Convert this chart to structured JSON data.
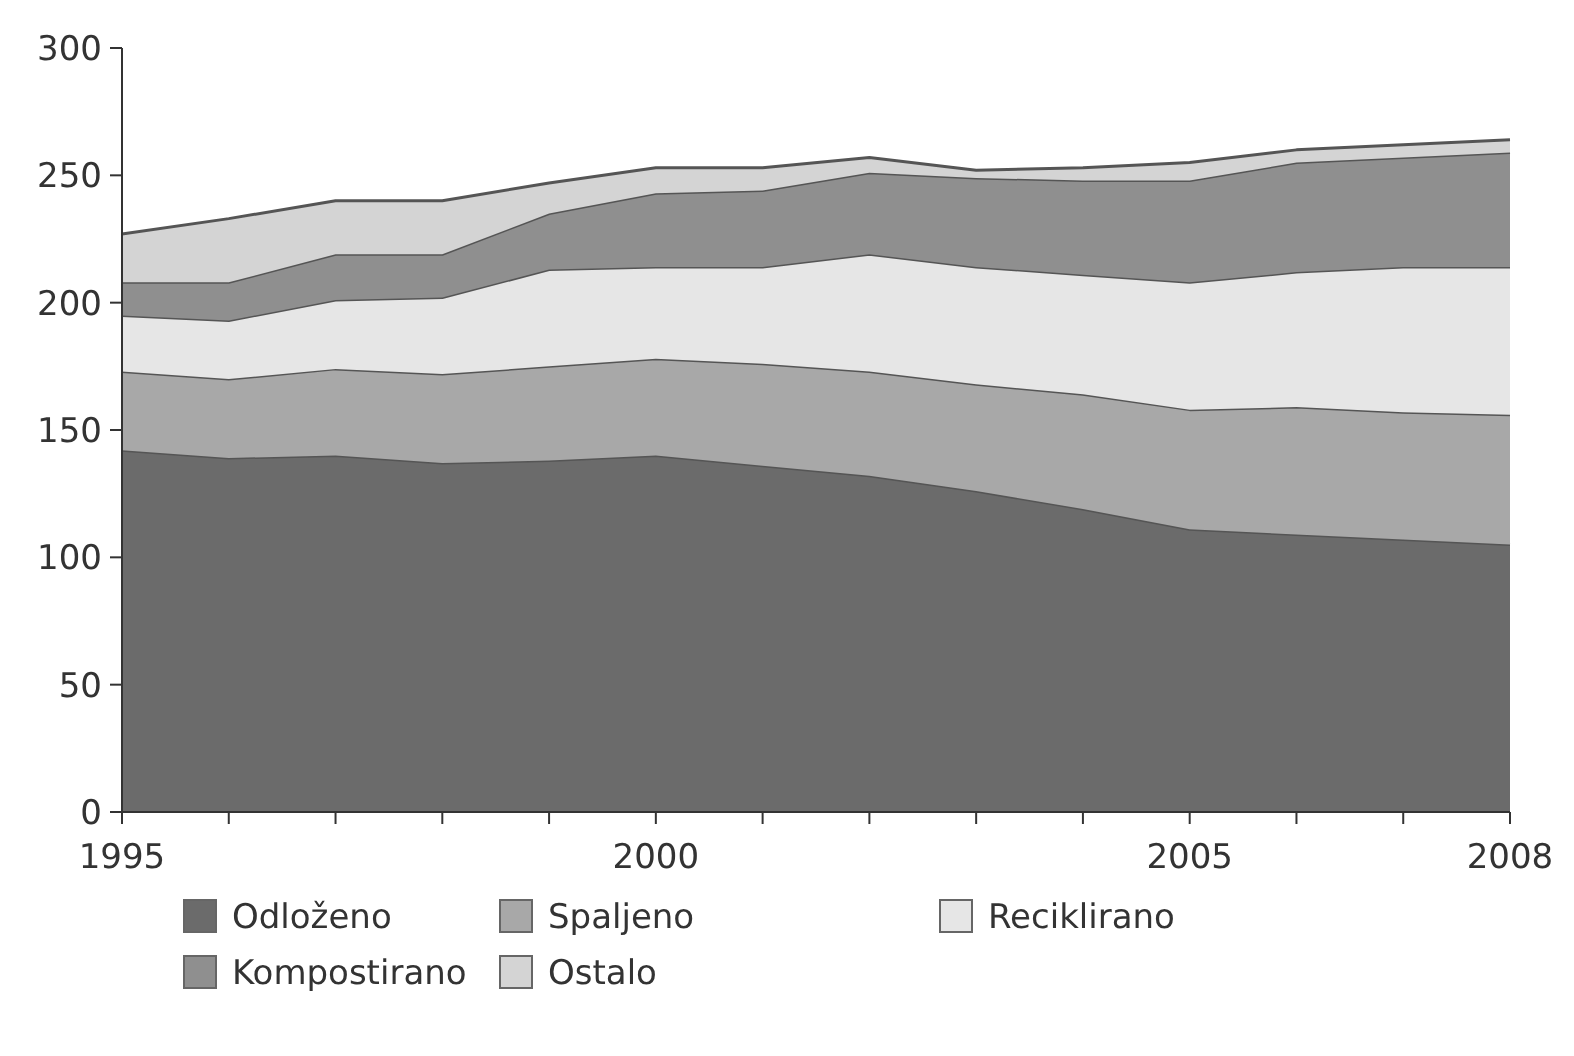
{
  "chart_data": {
    "type": "area",
    "stacked": true,
    "x": [
      1995,
      1996,
      1997,
      1998,
      1999,
      2000,
      2001,
      2002,
      2003,
      2004,
      2005,
      2006,
      2007,
      2008
    ],
    "xlim": [
      1995,
      2008
    ],
    "xticks": [
      1995,
      {
        "value": 1996,
        "label": null
      },
      {
        "value": 1997,
        "label": null
      },
      {
        "value": 1998,
        "label": null
      },
      {
        "value": 1999,
        "label": null
      },
      2000,
      {
        "value": 2001,
        "label": null
      },
      {
        "value": 2002,
        "label": null
      },
      {
        "value": 2003,
        "label": null
      },
      {
        "value": 2004,
        "label": null
      },
      2005,
      {
        "value": 2006,
        "label": null
      },
      {
        "value": 2007,
        "label": null
      },
      2008
    ],
    "ylim": [
      0,
      300
    ],
    "yticks": [
      0,
      50,
      100,
      150,
      200,
      250,
      300
    ],
    "grid": false,
    "legend": "bottom",
    "series": [
      {
        "name": "Odloženo",
        "color": "#6b6b6b",
        "values": [
          142,
          139,
          140,
          137,
          138,
          140,
          136,
          132,
          126,
          119,
          111,
          109,
          107,
          105
        ]
      },
      {
        "name": "Spaljeno",
        "color": "#a8a8a8",
        "values": [
          31,
          31,
          34,
          35,
          37,
          38,
          40,
          41,
          42,
          45,
          47,
          50,
          50,
          51
        ]
      },
      {
        "name": "Reciklirano",
        "color": "#e6e6e6",
        "values": [
          22,
          23,
          27,
          30,
          38,
          36,
          38,
          46,
          46,
          47,
          50,
          53,
          57,
          58
        ]
      },
      {
        "name": "Kompostirano",
        "color": "#8f8f8f",
        "values": [
          13,
          15,
          18,
          17,
          22,
          29,
          30,
          32,
          35,
          37,
          40,
          43,
          43,
          45
        ]
      },
      {
        "name": "Ostalo",
        "color": "#d4d4d4",
        "values": [
          19,
          25,
          21,
          21,
          12,
          10,
          9,
          6,
          3,
          5,
          7,
          5,
          5,
          5
        ]
      }
    ]
  }
}
